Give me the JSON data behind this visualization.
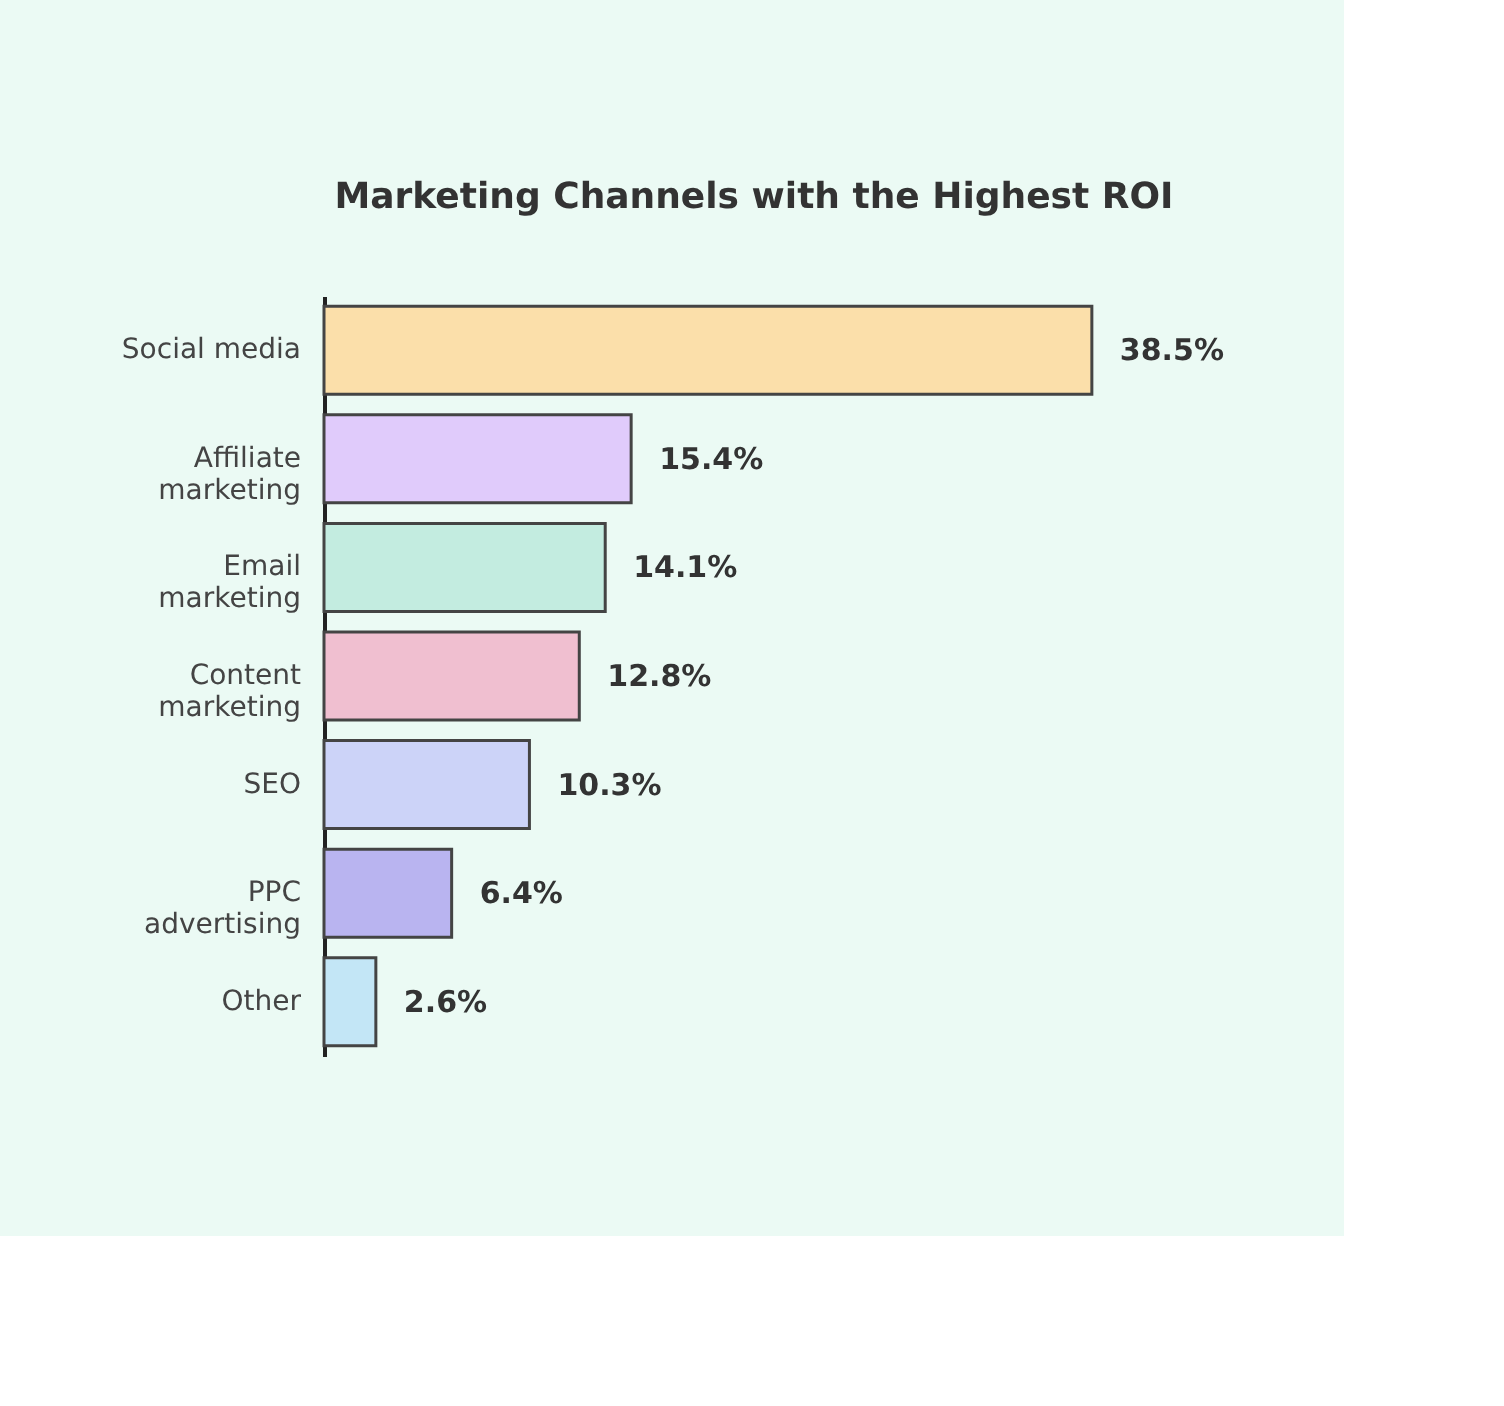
{
  "chart_data": {
    "type": "bar",
    "orientation": "horizontal",
    "title": "Marketing Channels with the Highest ROI",
    "categories": [
      "Social media",
      "Affiliate\nmarketing",
      "Email\nmarketing",
      "Content\nmarketing",
      "SEO",
      "PPC\nadvertising",
      "Other"
    ],
    "values": [
      38.5,
      15.4,
      14.1,
      12.8,
      10.3,
      6.4,
      2.6
    ],
    "value_labels": [
      "38.5%",
      "15.4%",
      "14.1%",
      "12.8%",
      "10.3%",
      "6.4%",
      "2.6%"
    ],
    "colors": [
      "#fbdfaa",
      "#e0cbfb",
      "#c3ece0",
      "#f0bfd0",
      "#ccd3f8",
      "#b9b4f0",
      "#c3e6f6"
    ],
    "grid": false,
    "tick_labels": "y"
  }
}
